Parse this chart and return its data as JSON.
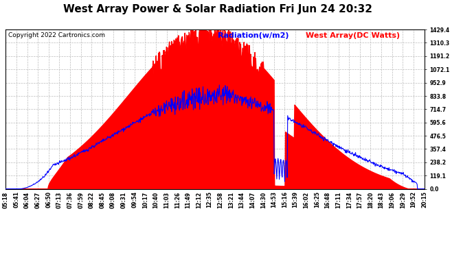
{
  "title": "West Array Power & Solar Radiation Fri Jun 24 20:32",
  "copyright": "Copyright 2022 Cartronics.com",
  "legend_radiation": "Radiation(w/m2)",
  "legend_west": "West Array(DC Watts)",
  "yticks": [
    0.0,
    119.1,
    238.2,
    357.4,
    476.5,
    595.6,
    714.7,
    833.8,
    952.9,
    1072.1,
    1191.2,
    1310.3,
    1429.4
  ],
  "ymax": 1429.4,
  "ymin": 0.0,
  "background_color": "#ffffff",
  "grid_color": "#bbbbbb",
  "radiation_color": "#0000ff",
  "west_color": "#ff0000",
  "title_fontsize": 11,
  "copyright_fontsize": 6.5,
  "legend_fontsize": 8,
  "tick_fontsize": 5.5,
  "x_labels": [
    "05:18",
    "05:41",
    "06:04",
    "06:27",
    "06:50",
    "07:13",
    "07:36",
    "07:59",
    "08:22",
    "08:45",
    "09:08",
    "09:31",
    "09:54",
    "10:17",
    "10:40",
    "11:03",
    "11:26",
    "11:49",
    "12:12",
    "12:35",
    "12:58",
    "13:21",
    "13:44",
    "14:07",
    "14:30",
    "14:53",
    "15:16",
    "15:39",
    "16:02",
    "16:25",
    "16:48",
    "17:11",
    "17:34",
    "17:57",
    "18:20",
    "18:43",
    "19:06",
    "19:29",
    "19:52",
    "20:15"
  ]
}
